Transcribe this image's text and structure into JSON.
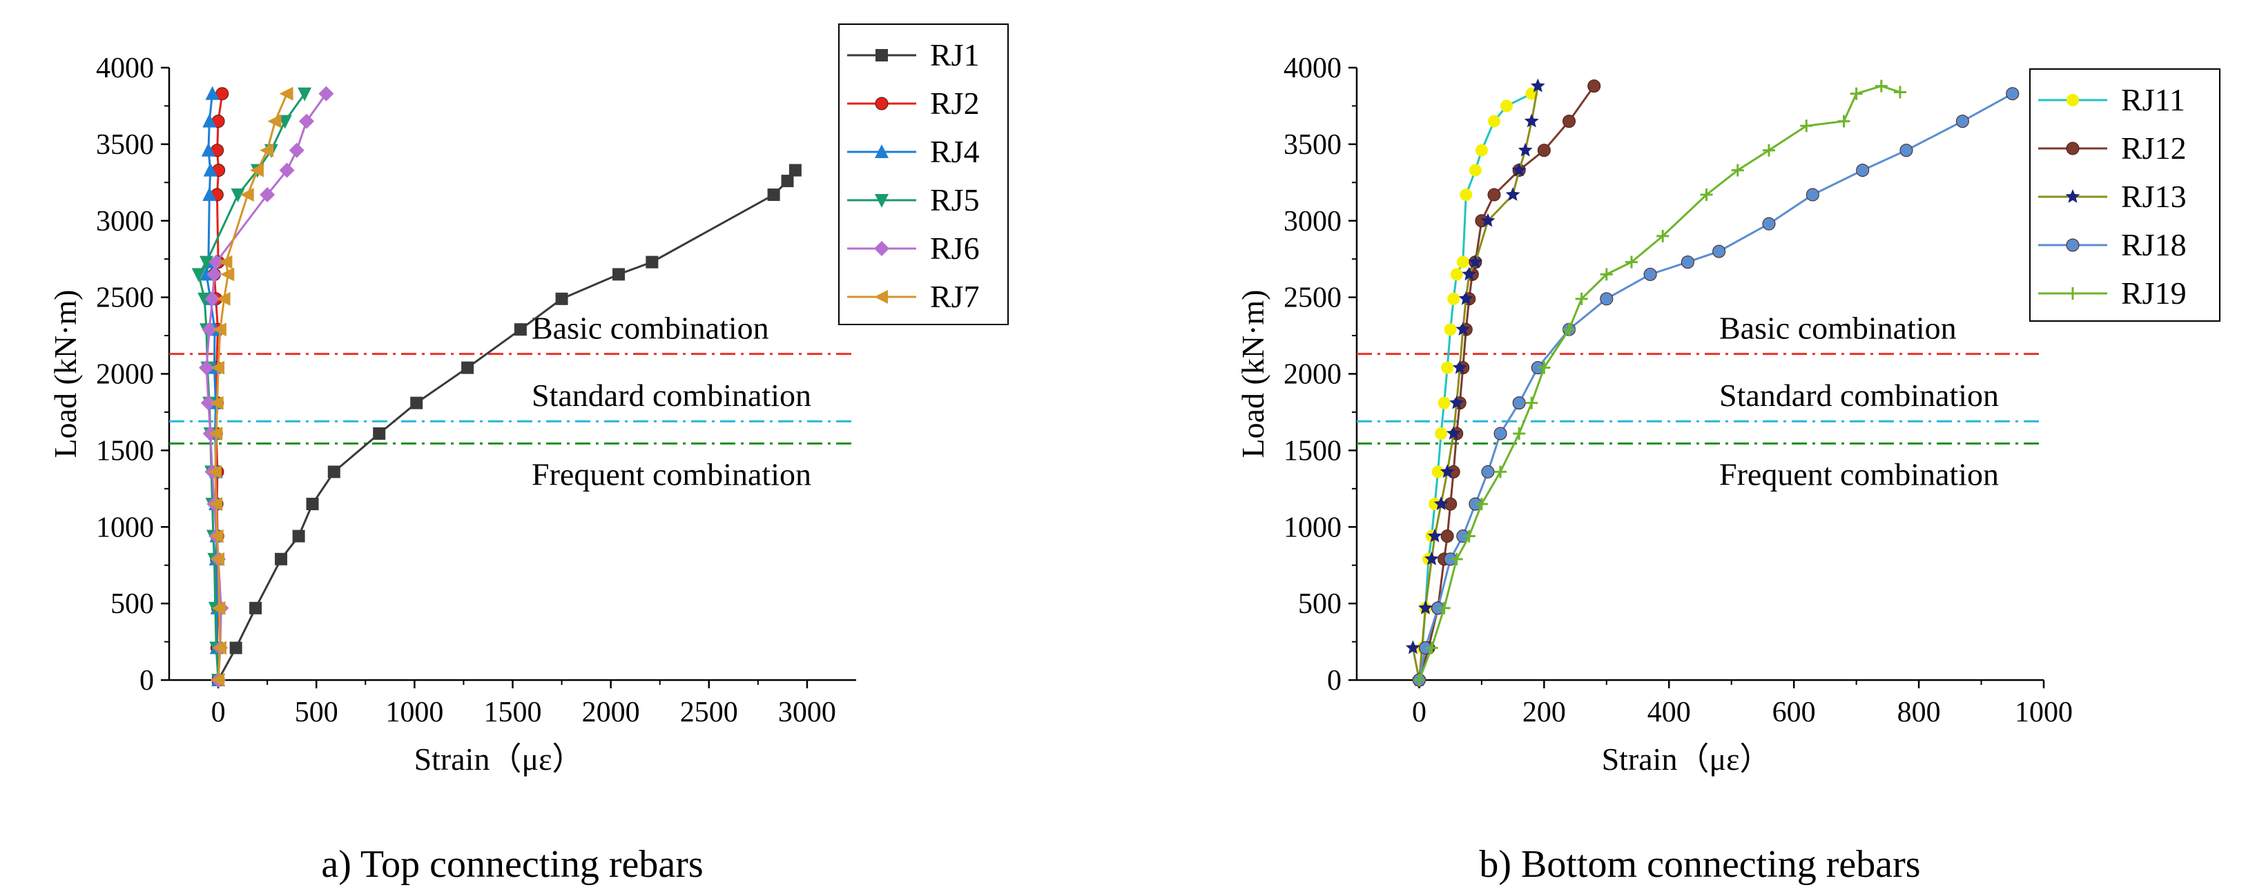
{
  "chart_data": [
    {
      "type": "line",
      "caption": "a) Top connecting rebars",
      "xlabel": "Strain（με）",
      "ylabel": "Load (kN·m)",
      "xlim": [
        -250,
        3250
      ],
      "ylim": [
        0,
        4000
      ],
      "xticks": [
        0,
        500,
        1000,
        1500,
        2000,
        2500,
        3000
      ],
      "yticks": [
        0,
        500,
        1000,
        1500,
        2000,
        2500,
        3000,
        3500,
        4000
      ],
      "legend_position": "top-right",
      "reference_lines": [
        {
          "label": "Basic combination",
          "y": 2130,
          "color": "#e8332a"
        },
        {
          "label": "Standard combination",
          "y": 1690,
          "color": "#27b8d6"
        },
        {
          "label": "Frequent combination",
          "y": 1545,
          "color": "#1f8f1f"
        }
      ],
      "series": [
        {
          "name": "RJ1",
          "color": "#3a3a3a",
          "marker": "square",
          "x": [
            0,
            90,
            190,
            320,
            410,
            480,
            590,
            820,
            1010,
            1270,
            1540,
            1750,
            2040,
            2210,
            2830,
            2900,
            2940
          ],
          "y": [
            0,
            210,
            470,
            790,
            940,
            1150,
            1360,
            1610,
            1810,
            2040,
            2290,
            2490,
            2650,
            2730,
            3170,
            3260,
            3330
          ]
        },
        {
          "name": "RJ2",
          "color": "#e3221b",
          "marker": "circle",
          "x": [
            0,
            -6,
            -2,
            -8,
            -3,
            -7,
            -4,
            -10,
            -5,
            -9,
            -2,
            -12,
            -20,
            0,
            -6,
            2,
            -5,
            0,
            20
          ],
          "y": [
            0,
            210,
            470,
            790,
            940,
            1150,
            1360,
            1610,
            1810,
            2040,
            2290,
            2490,
            2650,
            2730,
            3170,
            3330,
            3460,
            3650,
            3830
          ]
        },
        {
          "name": "RJ4",
          "color": "#1f7ed6",
          "marker": "triangle-up",
          "x": [
            0,
            -8,
            -5,
            -12,
            -9,
            -14,
            -11,
            -16,
            -13,
            -20,
            -18,
            -40,
            -60,
            -50,
            -45,
            -40,
            -50,
            -45,
            -30
          ],
          "y": [
            0,
            210,
            470,
            790,
            940,
            1150,
            1360,
            1610,
            1810,
            2040,
            2290,
            2490,
            2650,
            2730,
            3170,
            3330,
            3460,
            3650,
            3830
          ]
        },
        {
          "name": "RJ5",
          "color": "#1a9b6b",
          "marker": "triangle-down",
          "x": [
            0,
            -10,
            -15,
            -20,
            -25,
            -30,
            -35,
            -40,
            -45,
            -55,
            -60,
            -70,
            -100,
            -60,
            100,
            200,
            270,
            340,
            440
          ],
          "y": [
            0,
            210,
            470,
            790,
            940,
            1150,
            1360,
            1610,
            1810,
            2040,
            2290,
            2490,
            2650,
            2730,
            3170,
            3330,
            3460,
            3650,
            3830
          ]
        },
        {
          "name": "RJ6",
          "color": "#b76ed0",
          "marker": "diamond",
          "x": [
            0,
            10,
            15,
            0,
            -10,
            -20,
            -30,
            -40,
            -50,
            -60,
            -45,
            -30,
            -20,
            -10,
            250,
            350,
            400,
            450,
            550
          ],
          "y": [
            0,
            210,
            470,
            790,
            940,
            1150,
            1360,
            1610,
            1810,
            2040,
            2290,
            2490,
            2650,
            2730,
            3170,
            3330,
            3460,
            3650,
            3830
          ]
        },
        {
          "name": "RJ7",
          "color": "#d4952a",
          "marker": "triangle-left",
          "x": [
            0,
            10,
            5,
            0,
            -5,
            -10,
            -15,
            -10,
            -5,
            0,
            10,
            30,
            50,
            40,
            150,
            200,
            250,
            290,
            350
          ],
          "y": [
            0,
            210,
            470,
            790,
            940,
            1150,
            1360,
            1610,
            1810,
            2040,
            2290,
            2490,
            2650,
            2730,
            3170,
            3330,
            3460,
            3650,
            3830
          ]
        }
      ]
    },
    {
      "type": "line",
      "caption": "b) Bottom connecting rebars",
      "xlabel": "Strain（με）",
      "ylabel": "Load (kN·m)",
      "xlim": [
        -100,
        1000
      ],
      "ylim": [
        0,
        4000
      ],
      "xticks": [
        0,
        200,
        400,
        600,
        800,
        1000
      ],
      "yticks": [
        0,
        500,
        1000,
        1500,
        2000,
        2500,
        3000,
        3500,
        4000
      ],
      "legend_position": "top-right",
      "reference_lines": [
        {
          "label": "Basic combination",
          "y": 2130,
          "color": "#e8332a"
        },
        {
          "label": "Standard combination",
          "y": 1690,
          "color": "#27b8d6"
        },
        {
          "label": "Frequent combination",
          "y": 1545,
          "color": "#1f8f1f"
        }
      ],
      "series": [
        {
          "name": "RJ11",
          "color": "#1fc4c4",
          "marker": "circle-yellow",
          "x": [
            0,
            5,
            10,
            15,
            20,
            25,
            30,
            35,
            40,
            45,
            50,
            55,
            60,
            70,
            75,
            90,
            100,
            120,
            140,
            180
          ],
          "y": [
            0,
            210,
            470,
            790,
            940,
            1150,
            1360,
            1610,
            1810,
            2040,
            2290,
            2490,
            2650,
            2730,
            3170,
            3330,
            3460,
            3650,
            3750,
            3830
          ]
        },
        {
          "name": "RJ12",
          "color": "#7b3b2e",
          "marker": "circle",
          "x": [
            0,
            15,
            30,
            40,
            45,
            50,
            55,
            60,
            65,
            70,
            75,
            80,
            85,
            90,
            100,
            120,
            160,
            200,
            240,
            280
          ],
          "y": [
            0,
            210,
            470,
            790,
            940,
            1150,
            1360,
            1610,
            1810,
            2040,
            2290,
            2490,
            2650,
            2730,
            3000,
            3170,
            3330,
            3460,
            3650,
            3880
          ]
        },
        {
          "name": "RJ13",
          "color": "#8a8f1a",
          "marker": "star",
          "x": [
            -10,
            0,
            10,
            20,
            25,
            35,
            45,
            55,
            60,
            65,
            70,
            75,
            80,
            90,
            110,
            150,
            160,
            170,
            180,
            190
          ],
          "y": [
            210,
            0,
            470,
            790,
            940,
            1150,
            1360,
            1610,
            1810,
            2040,
            2290,
            2490,
            2650,
            2730,
            3000,
            3170,
            3330,
            3460,
            3650,
            3880
          ]
        },
        {
          "name": "RJ18",
          "color": "#5b8ed0",
          "marker": "circle",
          "x": [
            0,
            10,
            30,
            50,
            70,
            90,
            110,
            130,
            160,
            190,
            240,
            300,
            370,
            430,
            480,
            560,
            630,
            710,
            780,
            870,
            950
          ],
          "y": [
            0,
            210,
            470,
            790,
            940,
            1150,
            1360,
            1610,
            1810,
            2040,
            2290,
            2490,
            2650,
            2730,
            2800,
            2980,
            3170,
            3330,
            3460,
            3650,
            3830
          ]
        },
        {
          "name": "RJ19",
          "color": "#6db52a",
          "marker": "plus",
          "x": [
            0,
            20,
            40,
            60,
            80,
            100,
            130,
            160,
            180,
            200,
            240,
            260,
            300,
            340,
            390,
            460,
            510,
            560,
            620,
            680,
            700,
            740,
            770
          ],
          "y": [
            0,
            210,
            470,
            790,
            940,
            1150,
            1360,
            1610,
            1810,
            2040,
            2290,
            2490,
            2650,
            2730,
            2900,
            3170,
            3330,
            3460,
            3620,
            3650,
            3830,
            3880,
            3840
          ]
        }
      ]
    }
  ]
}
